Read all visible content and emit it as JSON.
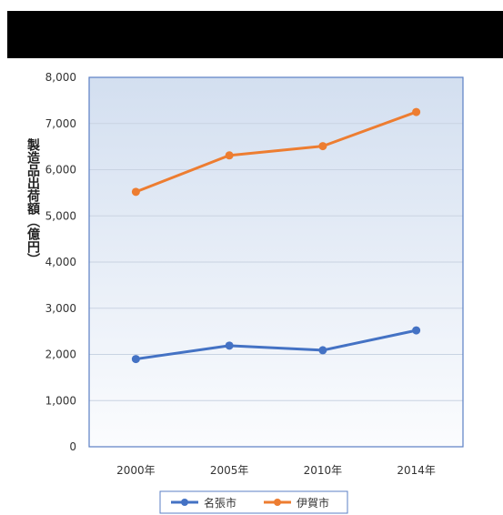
{
  "chart_data": {
    "type": "line",
    "title": "",
    "ylabel": "製造品出荷額（億円）",
    "xlabel": "",
    "categories": [
      "2000年",
      "2005年",
      "2010年",
      "2014年"
    ],
    "ylim": [
      0,
      8000
    ],
    "yticks": [
      0,
      1000,
      2000,
      3000,
      4000,
      5000,
      6000,
      7000,
      8000
    ],
    "ytick_labels": [
      "0",
      "1,000",
      "2,000",
      "3,000",
      "4,000",
      "5,000",
      "6,000",
      "7,000",
      "8,000"
    ],
    "grid": true,
    "legend_position": "bottom",
    "series": [
      {
        "name": "名張市",
        "color": "#4472c4",
        "values": [
          1900,
          2190,
          2090,
          2520
        ]
      },
      {
        "name": "伊賀市",
        "color": "#ed7d31",
        "values": [
          5520,
          6310,
          6510,
          7250
        ]
      }
    ]
  }
}
